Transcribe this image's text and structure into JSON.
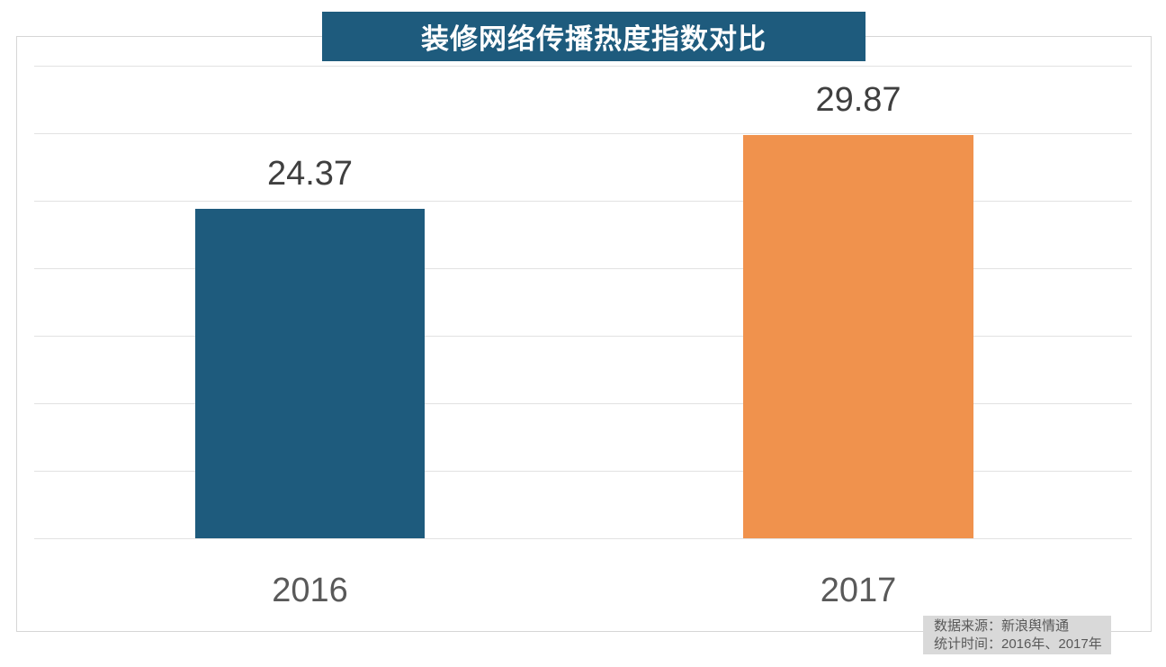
{
  "title_banner": {
    "text": "装修网络传播热度指数对比"
  },
  "chart_data": {
    "type": "bar",
    "title": "装修网络传播热度指数对比",
    "categories": [
      "2016",
      "2017"
    ],
    "values": [
      24.37,
      29.87
    ],
    "value_labels": [
      "24.37",
      "29.87"
    ],
    "xlabel": "",
    "ylabel": "",
    "ylim": [
      0,
      35
    ],
    "gridline_step": 5,
    "grid": true,
    "legend": false,
    "bar_colors": [
      "#1E5B7D",
      "#F0924D"
    ]
  },
  "source_note": {
    "line1": "数据来源：新浪舆情通",
    "line2": "统计时间：2016年、2017年"
  },
  "colors": {
    "banner_bg": "#1E5B7D",
    "bar_2016": "#1E5B7D",
    "bar_2017": "#F0924D",
    "gridline": "#E2E2E2",
    "box_border": "#D6D6D6",
    "value_text": "#3F3F3F",
    "axis_text": "#595959",
    "source_bg": "#D9D9D9",
    "source_text": "#595959"
  }
}
